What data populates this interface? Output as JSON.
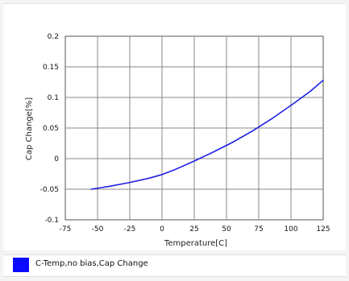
{
  "chart_data": {
    "type": "line",
    "title": "",
    "xlabel": "Temperature[C]",
    "ylabel": "Cap Change[%]",
    "xlim": [
      -75,
      125
    ],
    "ylim": [
      -0.1,
      0.2
    ],
    "x_ticks": [
      -75,
      -50,
      -25,
      0,
      25,
      50,
      75,
      100,
      125
    ],
    "x_tick_labels": [
      "-75",
      "-50",
      "-25",
      "0",
      "25",
      "50",
      "75",
      "100",
      "125"
    ],
    "y_ticks": [
      0.2,
      0.15,
      0.1,
      0.05,
      0,
      -0.05,
      -0.1
    ],
    "y_tick_labels": [
      "0.2",
      "0.15",
      "0.1",
      "0.05",
      "0",
      "-0.05",
      "-0.1"
    ],
    "grid": true,
    "legend_position": "bottom",
    "series": [
      {
        "name": "C-Temp,no bias,Cap Change",
        "color": "#1f1fe6",
        "x": [
          -55,
          -40,
          -25,
          -10,
          0,
          10,
          25,
          40,
          55,
          70,
          85,
          100,
          115,
          125
        ],
        "values": [
          -0.05,
          -0.045,
          -0.039,
          -0.032,
          -0.026,
          -0.018,
          -0.004,
          0.011,
          0.027,
          0.045,
          0.065,
          0.087,
          0.11,
          0.128
        ]
      }
    ]
  },
  "legend": {
    "label": "C-Temp,no bias,Cap Change",
    "color": "#0a0aff"
  }
}
